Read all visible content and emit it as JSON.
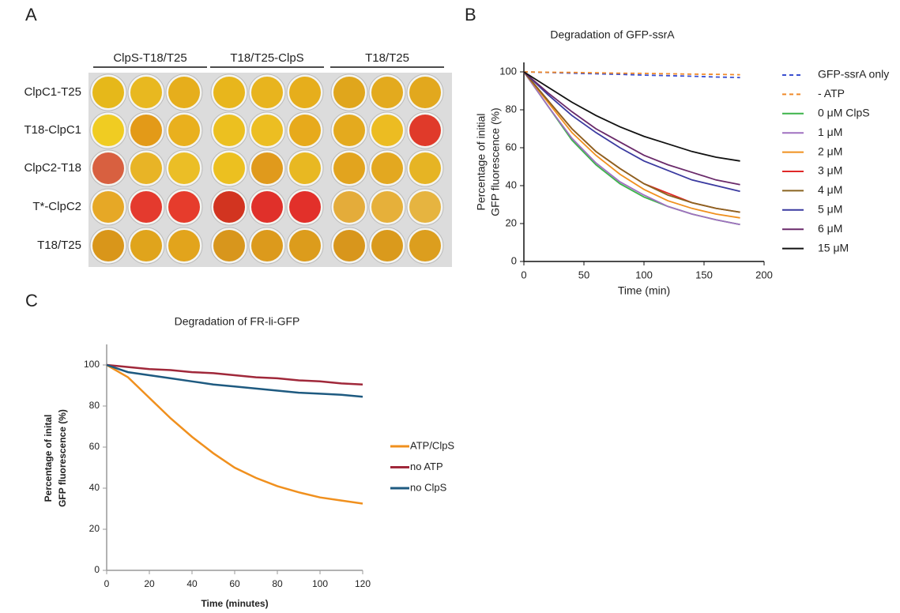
{
  "panel_labels": [
    "A",
    "B",
    "C"
  ],
  "plate_panel": {
    "column_groups": [
      "ClpS-T18/T25",
      "T18/T25-ClpS",
      "T18/T25"
    ],
    "rows": [
      {
        "label": "ClpC1-T25",
        "wells": [
          "#e6b81a",
          "#e8b820",
          "#e6ae1c",
          "#e8b61c",
          "#e8b41e",
          "#e6ae1c",
          "#e0a61c",
          "#e3aa1e",
          "#e2a81e"
        ]
      },
      {
        "label": "T18-ClpC1",
        "wells": [
          "#f0cc22",
          "#e39a18",
          "#e9b01e",
          "#ecc020",
          "#ecbe22",
          "#e7aa1c",
          "#e4aa1e",
          "#ecbc22",
          "#e03a2a"
        ]
      },
      {
        "label": "ClpC2-T18",
        "wells": [
          "#d86040",
          "#e8b426",
          "#ebbe26",
          "#ecc020",
          "#e09a1c",
          "#e8b822",
          "#e2a41e",
          "#e3a820",
          "#e6b424"
        ]
      },
      {
        "label": "T*-ClpC2",
        "wells": [
          "#e6a826",
          "#e43a2e",
          "#e63c2c",
          "#d23420",
          "#e0302a",
          "#e2302a",
          "#e4ac3a",
          "#e6b03a",
          "#e6b440"
        ]
      },
      {
        "label": "T18/T25",
        "wells": [
          "#d9961a",
          "#e0a41c",
          "#e2a41c",
          "#d8961c",
          "#dc9a1c",
          "#dc9c1c",
          "#d8961c",
          "#da9a1c",
          "#dc9e1e"
        ]
      }
    ]
  },
  "chart_data": [
    {
      "type": "line",
      "title": "Degradation of GFP-ssrA",
      "x_label": "Time (min)",
      "y_label": [
        "Percentage of initial",
        "GFP fluorescence (%)"
      ],
      "x": [
        0,
        20,
        40,
        60,
        80,
        100,
        120,
        140,
        160,
        180
      ],
      "xlim": [
        0,
        200
      ],
      "xticks": [
        0,
        50,
        100,
        150,
        200
      ],
      "ylim": [
        0,
        105
      ],
      "yticks": [
        0,
        20,
        40,
        60,
        80,
        100
      ],
      "series": [
        {
          "name": "GFP-ssrA only",
          "color": "#3a4fd0",
          "dashed": true,
          "values": [
            100,
            99.7,
            99.3,
            99,
            98.7,
            98.3,
            98,
            97.7,
            97.3,
            97
          ]
        },
        {
          "name": "- ATP",
          "color": "#f08a2a",
          "dashed": true,
          "values": [
            100,
            99.8,
            99.7,
            99.5,
            99.3,
            99.2,
            99,
            98.8,
            98.7,
            98.5
          ]
        },
        {
          "name": "0 μM ClpS",
          "color": "#3cb44a",
          "values": [
            100,
            82,
            64,
            51,
            41,
            34,
            29,
            25,
            22,
            19.5
          ]
        },
        {
          "name": "1 μM",
          "color": "#a070c0",
          "values": [
            100,
            82,
            65,
            52,
            42,
            35,
            29,
            25,
            22,
            19.5
          ]
        },
        {
          "name": "2 μM",
          "color": "#f0901e",
          "values": [
            100,
            84,
            68,
            56,
            46,
            38,
            32,
            28,
            25,
            23
          ]
        },
        {
          "name": "3 μM",
          "color": "#e02828",
          "values": [
            100,
            85,
            70,
            58,
            49,
            41,
            36,
            31,
            28,
            26
          ]
        },
        {
          "name": "4 μM",
          "color": "#8a6420",
          "values": [
            100,
            85,
            70,
            58,
            49,
            41,
            35,
            31,
            28,
            26
          ]
        },
        {
          "name": "5 μM",
          "color": "#3a3aa0",
          "values": [
            100,
            88,
            77,
            68,
            60,
            53,
            48,
            43,
            40,
            37
          ]
        },
        {
          "name": "6 μM",
          "color": "#6a2a6a",
          "values": [
            100,
            89,
            79,
            70,
            63,
            56,
            51,
            47,
            43,
            40.5
          ]
        },
        {
          "name": "15 μM",
          "color": "#111111",
          "values": [
            100,
            92,
            84,
            77,
            71,
            66,
            62,
            58,
            55,
            53
          ]
        }
      ]
    },
    {
      "type": "line",
      "title": "Degradation of FR-li-GFP",
      "x_label": "Time (minutes)",
      "y_label": [
        "Percentage of inital",
        "GFP fluorescence (%)"
      ],
      "x": [
        0,
        10,
        20,
        30,
        40,
        50,
        60,
        70,
        80,
        90,
        100,
        110,
        120
      ],
      "xlim": [
        0,
        120
      ],
      "xticks": [
        0,
        20,
        40,
        60,
        80,
        100,
        120
      ],
      "ylim": [
        0,
        110
      ],
      "yticks": [
        0,
        20,
        40,
        60,
        80,
        100
      ],
      "series": [
        {
          "name": "ATP/ClpS",
          "color": "#f0901e",
          "values": [
            100,
            94,
            84,
            74,
            65,
            57,
            50,
            45,
            41,
            38,
            35.5,
            34,
            32.5
          ]
        },
        {
          "name": "no ATP",
          "color": "#a0283a",
          "values": [
            100,
            99,
            98,
            97.5,
            96.5,
            96,
            95,
            94,
            93.5,
            92.5,
            92,
            91,
            90.5
          ]
        },
        {
          "name": "no ClpS",
          "color": "#1e5a80",
          "values": [
            100,
            96.5,
            95,
            93.5,
            92,
            90.5,
            89.5,
            88.5,
            87.5,
            86.5,
            86,
            85.5,
            84.5
          ]
        }
      ]
    }
  ]
}
